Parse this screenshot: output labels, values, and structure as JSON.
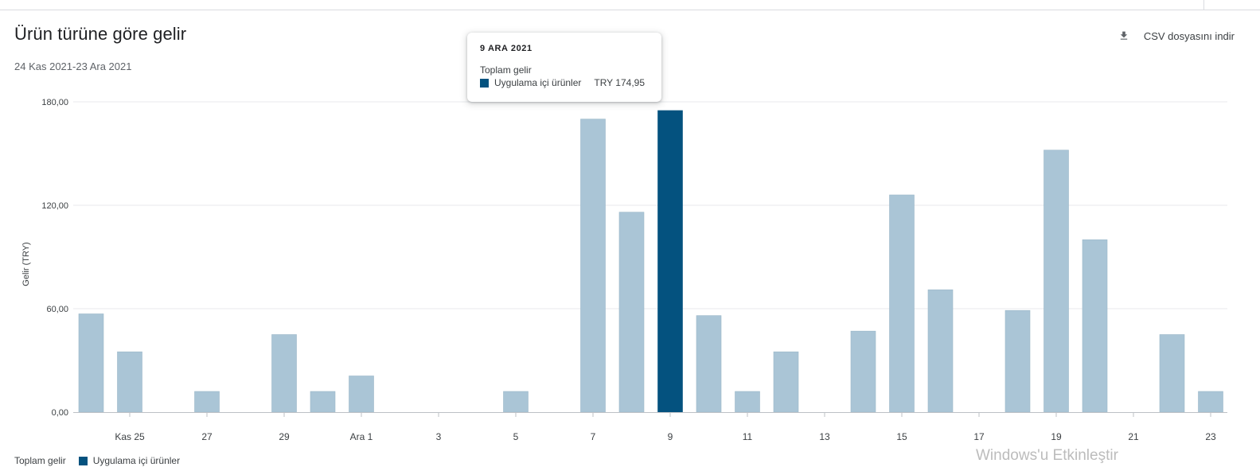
{
  "header": {
    "title": "Ürün türüne göre gelir",
    "date_range": "24 Kas 2021-23 Ara 2021",
    "csv_button_label": "CSV dosyasını indir",
    "csv_icon": "download-icon"
  },
  "tooltip": {
    "date": "9 ARA 2021",
    "series_title": "Toplam gelir",
    "series_name": "Uygulama içi ürünler",
    "value": "TRY 174,95"
  },
  "legend": {
    "title": "Toplam gelir",
    "series_name": "Uygulama içi ürünler"
  },
  "watermark": "Windows'u Etkinleştir",
  "colors": {
    "bar": "#aac5d6",
    "bar_highlight": "#04527f",
    "grid": "#e8eaed",
    "axis_text": "#3c4043"
  },
  "chart_data": {
    "type": "bar",
    "ylabel": "Gelir (TRY)",
    "ylim": [
      0,
      180
    ],
    "yticks": [
      "0,00",
      "60,00",
      "120,00",
      "180,00"
    ],
    "categories": [
      "24 Kas",
      "25 Kas",
      "26 Kas",
      "27 Kas",
      "28 Kas",
      "29 Kas",
      "30 Kas",
      "1 Ara",
      "2 Ara",
      "3 Ara",
      "4 Ara",
      "5 Ara",
      "6 Ara",
      "7 Ara",
      "8 Ara",
      "9 Ara",
      "10 Ara",
      "11 Ara",
      "12 Ara",
      "13 Ara",
      "14 Ara",
      "15 Ara",
      "16 Ara",
      "17 Ara",
      "18 Ara",
      "19 Ara",
      "20 Ara",
      "21 Ara",
      "22 Ara",
      "23 Ara"
    ],
    "xtick_labels": [
      "Kas 25",
      "27",
      "29",
      "Ara 1",
      "3",
      "5",
      "7",
      "9",
      "11",
      "13",
      "15",
      "17",
      "19",
      "21",
      "23"
    ],
    "series": [
      {
        "name": "Uygulama içi ürünler",
        "values": [
          57,
          35,
          0,
          12,
          0,
          45,
          12,
          21,
          0,
          0,
          0,
          12,
          0,
          170,
          116,
          174.95,
          56,
          12,
          35,
          0,
          47,
          126,
          71,
          0,
          59,
          152,
          100,
          0,
          45,
          12
        ]
      }
    ],
    "highlight_index": 15,
    "grid": true,
    "legend_position": "bottom-left"
  }
}
